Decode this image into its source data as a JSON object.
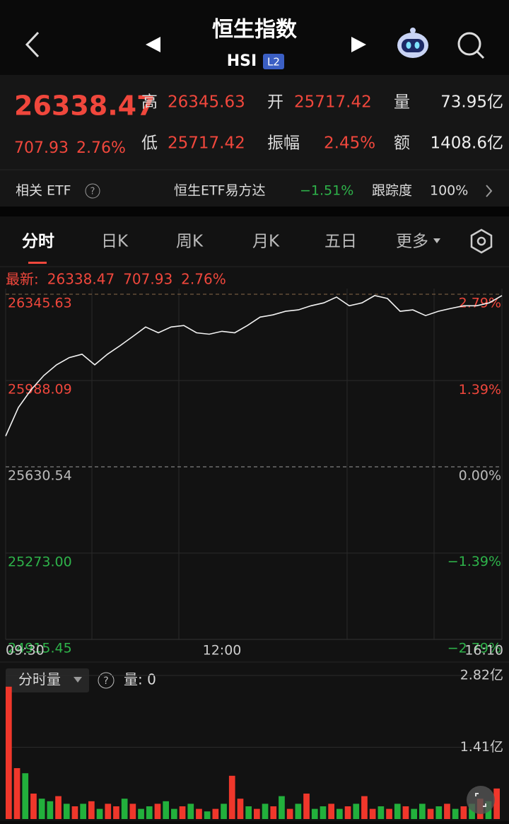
{
  "header": {
    "title": "恒生指数",
    "code": "HSI",
    "badge": "L2"
  },
  "quote": {
    "price": "26338.47",
    "change": "707.93",
    "change_pct": "2.76%",
    "fields": [
      {
        "label": "高",
        "value": "26345.63"
      },
      {
        "label": "开",
        "value": "25717.42"
      },
      {
        "label": "量",
        "value": "73.95亿"
      },
      {
        "label": "低",
        "value": "25717.42"
      },
      {
        "label": "振幅",
        "value": "2.45%"
      },
      {
        "label": "额",
        "value": "1408.6亿"
      }
    ]
  },
  "etf": {
    "label": "相关 ETF",
    "name": "恒生ETF易方达",
    "change": "−1.51%",
    "tracking_label": "跟踪度",
    "tracking": "100%"
  },
  "tabs": [
    "分时",
    "日K",
    "周K",
    "月K",
    "五日",
    "更多"
  ],
  "chart_data": [
    {
      "type": "line",
      "latest_label": "最新:",
      "latest_price": "26338.47",
      "latest_change": "707.93",
      "latest_pct": "2.76%",
      "color": "#f2f2f2",
      "categories": [
        "09:30",
        null,
        null,
        null,
        null,
        null,
        null,
        null,
        null,
        null,
        null,
        null,
        null,
        null,
        null,
        null,
        null,
        "12:00",
        null,
        null,
        null,
        null,
        null,
        null,
        null,
        null,
        null,
        null,
        null,
        null,
        null,
        null,
        null,
        null,
        null,
        null,
        null,
        null,
        null,
        "16:10"
      ],
      "values": [
        25758,
        25876,
        25950,
        26009,
        26053,
        26083,
        26097,
        26053,
        26097,
        26133,
        26171,
        26210,
        26186,
        26210,
        26216,
        26186,
        26180,
        26192,
        26186,
        26216,
        26251,
        26260,
        26275,
        26281,
        26298,
        26310,
        26334,
        26298,
        26310,
        26340,
        26328,
        26275,
        26281,
        26257,
        26275,
        26287,
        26298,
        26298,
        26310,
        26340
      ],
      "ylim": [
        24915.45,
        26345.63
      ],
      "yticks": [
        26345.63,
        {
          "value": 25988.09,
          "label": "25988.09"
        },
        25630.54,
        {
          "value": 25273.0,
          "label": "25273.00"
        },
        24915.45
      ],
      "y2lim": [
        -2.79,
        2.79
      ],
      "y2ticks": [
        {
          "value": 2.79,
          "label": "2.79%"
        },
        {
          "value": 1.39,
          "label": "1.39%"
        },
        {
          "value": 0,
          "label": "0.00%"
        },
        {
          "value": -1.39,
          "label": "−1.39%"
        },
        {
          "value": -2.79,
          "label": "−2.79%"
        }
      ],
      "grid": true
    },
    {
      "type": "bar",
      "legend": "分时量",
      "count_label": "量: 0",
      "values": [
        2.6,
        1.0,
        0.9,
        0.5,
        0.4,
        0.35,
        0.45,
        0.3,
        0.25,
        0.3,
        0.35,
        0.2,
        0.3,
        0.25,
        0.4,
        0.3,
        0.2,
        0.25,
        0.3,
        0.35,
        0.2,
        0.25,
        0.3,
        0.2,
        0.15,
        0.2,
        0.3,
        0.85,
        0.4,
        0.25,
        0.2,
        0.3,
        0.25,
        0.45,
        0.2,
        0.3,
        0.5,
        0.2,
        0.25,
        0.3,
        0.2,
        0.25,
        0.3,
        0.45,
        0.2,
        0.25,
        0.2,
        0.3,
        0.25,
        0.2,
        0.3,
        0.2,
        0.25,
        0.3,
        0.2,
        0.25,
        0.3,
        0.4,
        0.35,
        0.6
      ],
      "colors": [
        "#f0372b",
        "#f0372b",
        "#22b03c",
        "#f0372b",
        "#22b03c",
        "#22b03c",
        "#f0372b",
        "#22b03c",
        "#f0372b",
        "#22b03c",
        "#f0372b",
        "#22b03c",
        "#f0372b",
        "#f0372b",
        "#22b03c",
        "#f0372b",
        "#22b03c",
        "#22b03c",
        "#f0372b",
        "#22b03c",
        "#22b03c",
        "#f0372b",
        "#22b03c",
        "#f0372b",
        "#22b03c",
        "#f0372b",
        "#22b03c",
        "#f0372b",
        "#f0372b",
        "#22b03c",
        "#f0372b",
        "#22b03c",
        "#f0372b",
        "#22b03c",
        "#f0372b",
        "#22b03c",
        "#f0372b",
        "#22b03c",
        "#22b03c",
        "#f0372b",
        "#22b03c",
        "#f0372b",
        "#22b03c",
        "#f0372b",
        "#f0372b",
        "#22b03c",
        "#f0372b",
        "#22b03c",
        "#f0372b",
        "#22b03c",
        "#22b03c",
        "#f0372b",
        "#22b03c",
        "#f0372b",
        "#22b03c",
        "#f0372b",
        "#22b03c",
        "#f0372b",
        "#22b03c",
        "#f0372b"
      ],
      "ylim": [
        0,
        2.82
      ],
      "yticks": [
        {
          "value": 2.82,
          "label": "2.82亿"
        },
        {
          "value": 1.41,
          "label": "1.41亿"
        }
      ]
    }
  ]
}
